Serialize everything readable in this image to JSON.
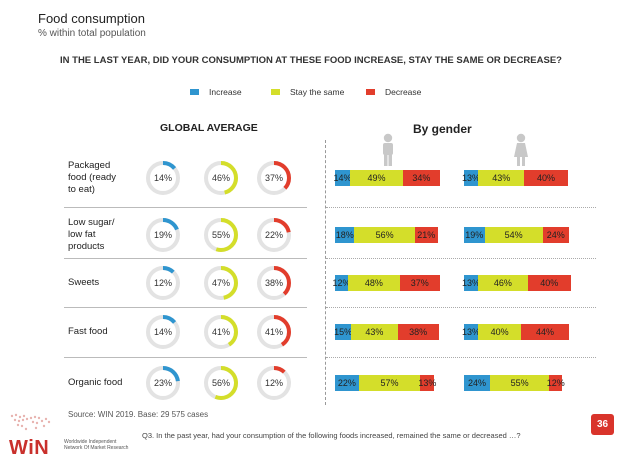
{
  "header": {
    "title": "Food consumption",
    "subtitle": "% within total population",
    "question": "IN THE LAST YEAR, DID YOUR CONSUMPTION AT THESE FOOD INCREASE, STAY THE SAME OR DECREASE?"
  },
  "legend": [
    {
      "label": "Increase",
      "color": "#2f95cf"
    },
    {
      "label": "Stay the same",
      "color": "#d4de2a"
    },
    {
      "label": "Decrease",
      "color": "#e23d2c"
    }
  ],
  "columns": {
    "global_heading": "GLOBAL AVERAGE",
    "gender_heading": "By gender"
  },
  "icons": {
    "male": "male-person-icon",
    "female": "female-person-icon"
  },
  "chart_data": {
    "type": "bar",
    "categories": [
      "Packaged food (ready to eat)",
      "Low sugar/ low fat products",
      "Sweets",
      "Fast food",
      "Organic food"
    ],
    "series_names": [
      "Increase",
      "Stay the same",
      "Decrease"
    ],
    "global": [
      [
        14,
        46,
        37
      ],
      [
        19,
        55,
        22
      ],
      [
        12,
        47,
        38
      ],
      [
        14,
        41,
        41
      ],
      [
        23,
        56,
        12
      ]
    ],
    "male": [
      [
        14,
        49,
        34
      ],
      [
        18,
        56,
        21
      ],
      [
        12,
        48,
        37
      ],
      [
        15,
        43,
        38
      ],
      [
        22,
        57,
        13
      ]
    ],
    "female": [
      [
        13,
        43,
        40
      ],
      [
        19,
        54,
        24
      ],
      [
        13,
        46,
        40
      ],
      [
        13,
        40,
        44
      ],
      [
        24,
        55,
        12
      ]
    ]
  },
  "row_labels": [
    "Packaged\nfood (ready\nto eat)",
    "Low sugar/\nlow fat\nproducts",
    "Sweets",
    "Fast food",
    "Organic food"
  ],
  "footer": {
    "source": "Source: WIN 2019. Base: 29 575 cases",
    "note": "Q3. In the past year, had your consumption of the following foods increased, remained the same or decreased …?",
    "page_number": "36",
    "logo_text": "WiN",
    "logo_sub": "Worldwide Independent Network Of Market Research"
  }
}
